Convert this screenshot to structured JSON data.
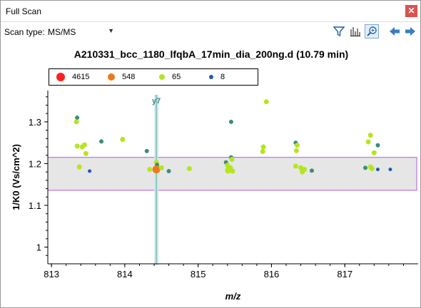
{
  "window": {
    "title": "Full Scan",
    "close_icon": "close-icon"
  },
  "toolbar": {
    "scan_type_label": "Scan type:",
    "scan_type_value": "MS/MS",
    "icons": [
      "filter-icon",
      "spectrum-icon",
      "zoom-icon",
      "back-arrow-icon",
      "forward-arrow-icon"
    ]
  },
  "chart_data": {
    "type": "scatter",
    "title": "A210331_bcc_1180_lfqbA_17min_dia_200ng.d  (10.79 min)",
    "xlabel": "m/z",
    "ylabel": "1/K0 (Vs/cm^2)",
    "xlim": [
      812.95,
      818.0
    ],
    "ylim": [
      0.96,
      1.375
    ],
    "x_ticks": [
      813,
      814,
      815,
      816,
      817
    ],
    "x_tick_labels": [
      "813",
      "814",
      "815",
      "816",
      "817"
    ],
    "y_ticks": [
      1.0,
      1.1,
      1.2,
      1.3
    ],
    "y_tick_labels": [
      "1",
      "1.1",
      "1.2",
      "1.3"
    ],
    "grid": false,
    "legend_placement": "top-left",
    "legend": [
      {
        "label": "4615",
        "color": "#ff2020",
        "size": 12
      },
      {
        "label": "548",
        "color": "#f07818",
        "size": 10
      },
      {
        "label": "65",
        "color": "#b4e61e",
        "size": 8
      },
      {
        "label": "8",
        "color": "#1e5ab4",
        "size": 6
      }
    ],
    "selection_band": {
      "ymin": 1.136,
      "ymax": 1.215,
      "xmin": 812.95,
      "xmax": 818.0
    },
    "annotation": {
      "label": "y7",
      "x": 814.43
    },
    "points": [
      {
        "x": 813.35,
        "y": 1.31,
        "c": "#3c8c78",
        "r": 3
      },
      {
        "x": 813.34,
        "y": 1.3,
        "c": "#b4e61e",
        "r": 3.5
      },
      {
        "x": 813.35,
        "y": 1.242,
        "c": "#b4e61e",
        "r": 3.5
      },
      {
        "x": 813.42,
        "y": 1.24,
        "c": "#b4e61e",
        "r": 3.5
      },
      {
        "x": 813.45,
        "y": 1.245,
        "c": "#b4e61e",
        "r": 3.5
      },
      {
        "x": 813.47,
        "y": 1.224,
        "c": "#b4e61e",
        "r": 3.5
      },
      {
        "x": 813.38,
        "y": 1.192,
        "c": "#b4e61e",
        "r": 3.5
      },
      {
        "x": 813.52,
        "y": 1.182,
        "c": "#1e5ab4",
        "r": 2.5
      },
      {
        "x": 813.68,
        "y": 1.253,
        "c": "#3c8c78",
        "r": 3
      },
      {
        "x": 813.97,
        "y": 1.258,
        "c": "#b4e61e",
        "r": 3.5
      },
      {
        "x": 814.3,
        "y": 1.23,
        "c": "#3c8c78",
        "r": 3
      },
      {
        "x": 814.43,
        "y": 1.203,
        "c": "#b4e61e",
        "r": 3.5
      },
      {
        "x": 814.44,
        "y": 1.197,
        "c": "#3c8c78",
        "r": 3
      },
      {
        "x": 814.34,
        "y": 1.186,
        "c": "#b4e61e",
        "r": 3.5
      },
      {
        "x": 814.43,
        "y": 1.186,
        "c": "#f07818",
        "r": 5.5
      },
      {
        "x": 814.5,
        "y": 1.19,
        "c": "#b4e61e",
        "r": 3.5
      },
      {
        "x": 814.6,
        "y": 1.182,
        "c": "#3c8c78",
        "r": 3
      },
      {
        "x": 814.88,
        "y": 1.188,
        "c": "#b4e61e",
        "r": 3.5
      },
      {
        "x": 815.45,
        "y": 1.3,
        "c": "#3c8c78",
        "r": 3
      },
      {
        "x": 815.45,
        "y": 1.215,
        "c": "#3c8c78",
        "r": 3
      },
      {
        "x": 815.46,
        "y": 1.21,
        "c": "#b4e61e",
        "r": 3.5
      },
      {
        "x": 815.38,
        "y": 1.203,
        "c": "#3c8c78",
        "r": 3
      },
      {
        "x": 815.4,
        "y": 1.196,
        "c": "#b4e61e",
        "r": 3.5
      },
      {
        "x": 815.44,
        "y": 1.19,
        "c": "#b4e61e",
        "r": 3.5
      },
      {
        "x": 815.41,
        "y": 1.184,
        "c": "#b4e61e",
        "r": 4.5
      },
      {
        "x": 815.47,
        "y": 1.182,
        "c": "#b4e61e",
        "r": 3.5
      },
      {
        "x": 815.93,
        "y": 1.348,
        "c": "#b4e61e",
        "r": 3.5
      },
      {
        "x": 815.89,
        "y": 1.24,
        "c": "#b4e61e",
        "r": 3.5
      },
      {
        "x": 815.88,
        "y": 1.229,
        "c": "#b4e61e",
        "r": 3.5
      },
      {
        "x": 816.33,
        "y": 1.25,
        "c": "#3c8c78",
        "r": 3
      },
      {
        "x": 816.35,
        "y": 1.244,
        "c": "#b4e61e",
        "r": 3.5
      },
      {
        "x": 816.34,
        "y": 1.231,
        "c": "#b4e61e",
        "r": 3.5
      },
      {
        "x": 816.33,
        "y": 1.194,
        "c": "#b4e61e",
        "r": 3.5
      },
      {
        "x": 816.4,
        "y": 1.19,
        "c": "#b4e61e",
        "r": 3.5
      },
      {
        "x": 816.45,
        "y": 1.186,
        "c": "#b4e61e",
        "r": 3.5
      },
      {
        "x": 816.42,
        "y": 1.18,
        "c": "#b4e61e",
        "r": 3.5
      },
      {
        "x": 816.55,
        "y": 1.183,
        "c": "#3c8c78",
        "r": 3
      },
      {
        "x": 817.35,
        "y": 1.268,
        "c": "#b4e61e",
        "r": 3.5
      },
      {
        "x": 817.32,
        "y": 1.252,
        "c": "#b4e61e",
        "r": 3.5
      },
      {
        "x": 817.45,
        "y": 1.244,
        "c": "#3c8c78",
        "r": 3
      },
      {
        "x": 817.4,
        "y": 1.226,
        "c": "#b4e61e",
        "r": 3.5
      },
      {
        "x": 817.28,
        "y": 1.19,
        "c": "#3c8c78",
        "r": 3
      },
      {
        "x": 817.35,
        "y": 1.192,
        "c": "#b4e61e",
        "r": 3.5
      },
      {
        "x": 817.37,
        "y": 1.188,
        "c": "#b4e61e",
        "r": 3.5
      },
      {
        "x": 817.45,
        "y": 1.186,
        "c": "#1e5ab4",
        "r": 2.5
      },
      {
        "x": 817.62,
        "y": 1.186,
        "c": "#1e5ab4",
        "r": 2.5
      }
    ]
  }
}
